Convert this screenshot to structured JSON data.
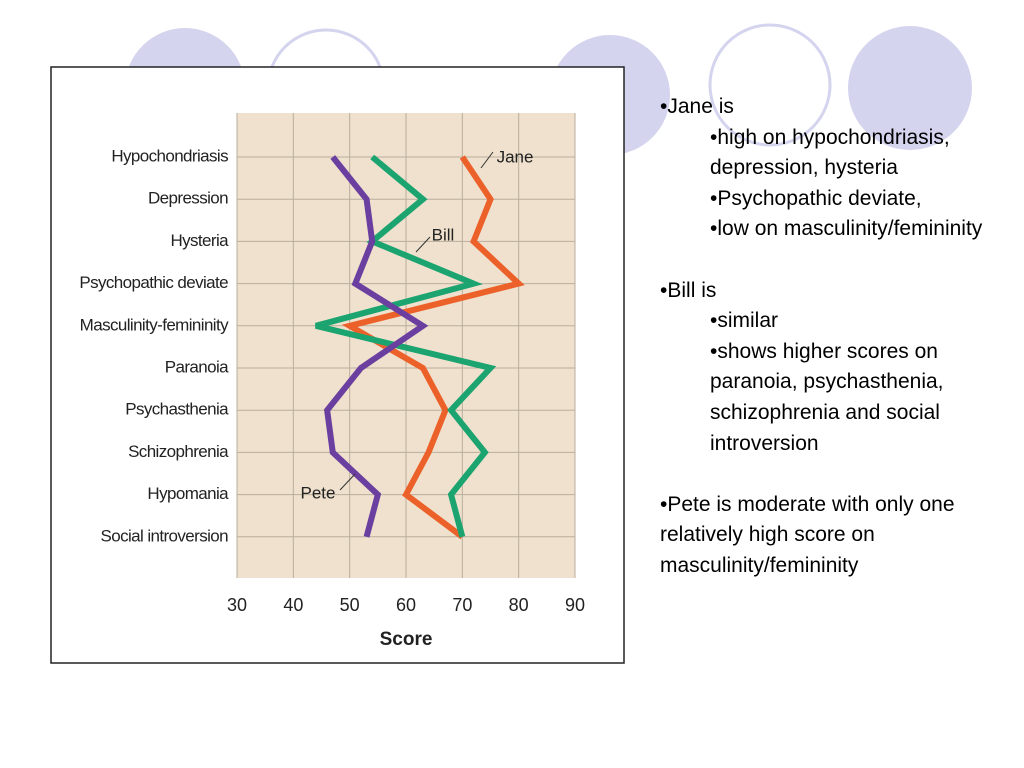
{
  "chart_data": {
    "type": "line",
    "categories": [
      "Hypochondriasis",
      "Depression",
      "Hysteria",
      "Psychopathic deviate",
      "Masculinity-femininity",
      "Paranoia",
      "Psychasthenia",
      "Schizophrenia",
      "Hypomania",
      "Social introversion"
    ],
    "series": [
      {
        "name": "Jane",
        "color": "#ec6129",
        "values": [
          70,
          75,
          72,
          80,
          50,
          63,
          67,
          64,
          60,
          70
        ]
      },
      {
        "name": "Bill",
        "color": "#1ba470",
        "values": [
          54,
          63,
          54,
          72,
          44,
          75,
          68,
          74,
          68,
          70
        ]
      },
      {
        "name": "Pete",
        "color": "#6b3fa0",
        "values": [
          47,
          53,
          54,
          51,
          63,
          52,
          46,
          47,
          55,
          53
        ]
      }
    ],
    "xlim": [
      30,
      90
    ],
    "xticks": [
      30,
      40,
      50,
      60,
      70,
      80,
      90
    ],
    "x_label": "Score",
    "grid": true
  },
  "notes": [
    {
      "text": "•Jane is",
      "items": [
        "•high on hypochondriasis, depression, hysteria",
        "•Psychopathic deviate,",
        "•low on masculinity/femininity"
      ]
    },
    {
      "text": "•Bill is",
      "items": [
        "•similar",
        "•shows higher scores on paranoia, psychasthenia, schizophrenia and social introversion"
      ]
    },
    {
      "text": "•Pete is moderate with only one relatively high score on masculinity/femininity",
      "items": []
    }
  ]
}
